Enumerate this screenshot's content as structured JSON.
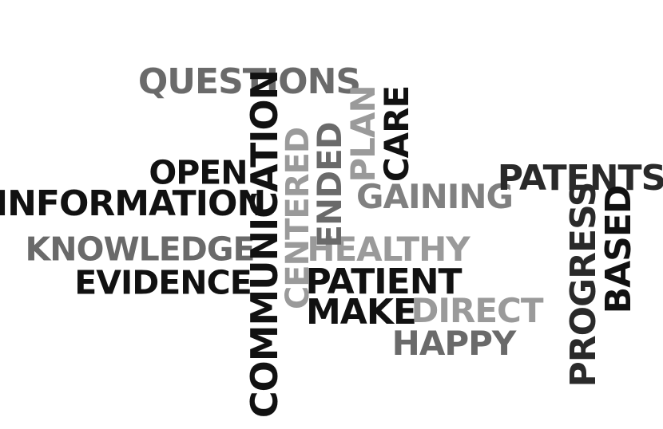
{
  "words": {
    "questions": {
      "text": "QUESTIONS",
      "color": "#6a6a6a"
    },
    "communication": {
      "text": "COMMUNICATION",
      "color": "#111111"
    },
    "centered": {
      "text": "CENTERED",
      "color": "#9a9a9a"
    },
    "ended": {
      "text": "ENDED",
      "color": "#6a6a6a"
    },
    "plan": {
      "text": "PLAN",
      "color": "#9a9a9a"
    },
    "care": {
      "text": "CARE",
      "color": "#111111"
    },
    "open": {
      "text": "OPEN",
      "color": "#111111"
    },
    "information": {
      "text": "INFORMATION",
      "color": "#111111"
    },
    "knowledge": {
      "text": "KNOWLEDGE",
      "color": "#6a6a6a"
    },
    "evidence": {
      "text": "EVIDENCE",
      "color": "#111111"
    },
    "gaining": {
      "text": "GAINING",
      "color": "#808080"
    },
    "patents": {
      "text": "PATENTS",
      "color": "#2a2a2a"
    },
    "healthy": {
      "text": "HEALTHY",
      "color": "#9a9a9a"
    },
    "patient": {
      "text": "PATIENT",
      "color": "#111111"
    },
    "make": {
      "text": "MAKE",
      "color": "#111111"
    },
    "direct": {
      "text": "DIRECT",
      "color": "#9a9a9a"
    },
    "happy": {
      "text": "HAPPY",
      "color": "#6a6a6a"
    },
    "progress": {
      "text": "PROGRESS",
      "color": "#2a2a2a"
    },
    "based": {
      "text": "BASED",
      "color": "#111111"
    }
  }
}
